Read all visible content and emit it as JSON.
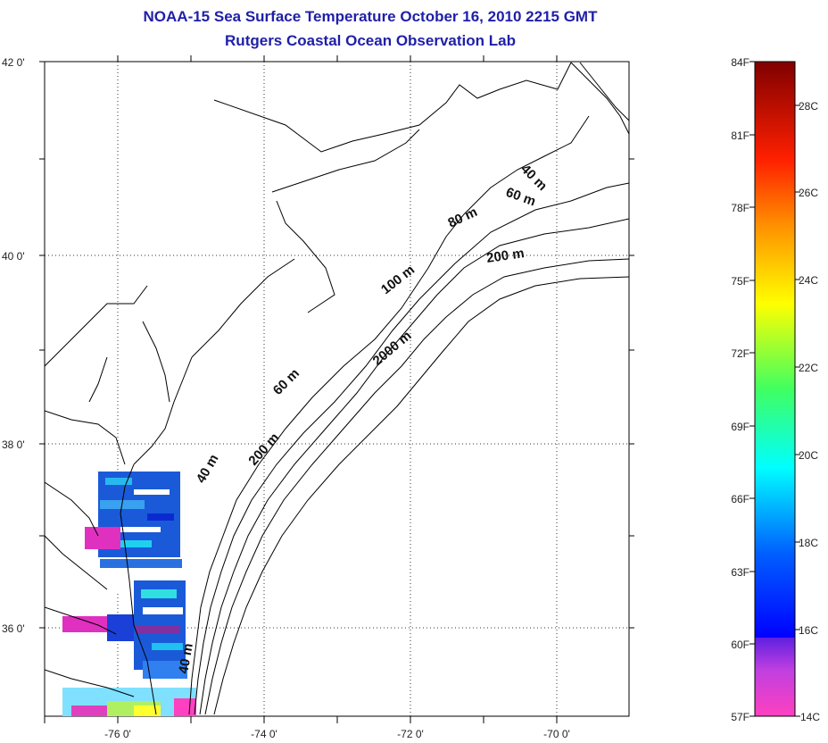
{
  "title": {
    "line1": "NOAA-15 Sea Surface Temperature October 16, 2010 2215 GMT",
    "line2": "Rutgers Coastal Ocean Observation Lab"
  },
  "axes": {
    "lon_ticks": [
      "-76 0'",
      "-74 0'",
      "-72 0'",
      "-70 0'"
    ],
    "lat_ticks": [
      "42 0'",
      "40 0'",
      "38 0'",
      "36 0'"
    ]
  },
  "contour_labels": [
    {
      "id": "40m-ne",
      "text": "40 m"
    },
    {
      "id": "60m-ne",
      "text": "60 m"
    },
    {
      "id": "80m",
      "text": "80 m"
    },
    {
      "id": "200m-ne",
      "text": "200 m"
    },
    {
      "id": "100m",
      "text": "100 m"
    },
    {
      "id": "2000m",
      "text": "2000 m"
    },
    {
      "id": "60m-mid",
      "text": "60 m"
    },
    {
      "id": "40m-mid",
      "text": "40 m"
    },
    {
      "id": "200m-mid",
      "text": "200 m"
    },
    {
      "id": "40m-s",
      "text": "40 m"
    }
  ],
  "colorbar": {
    "f_labels": [
      "84F",
      "81F",
      "78F",
      "75F",
      "72F",
      "69F",
      "66F",
      "63F",
      "60F",
      "57F"
    ],
    "c_labels": [
      "28C",
      "26C",
      "24C",
      "22C",
      "20C",
      "18C",
      "16C",
      "14C"
    ],
    "colors": [
      "#800000",
      "#ff0000",
      "#ff8000",
      "#ffff00",
      "#40ff40",
      "#00ffff",
      "#0060ff",
      "#0000ff",
      "#8040c0",
      "#ff40c0"
    ]
  }
}
